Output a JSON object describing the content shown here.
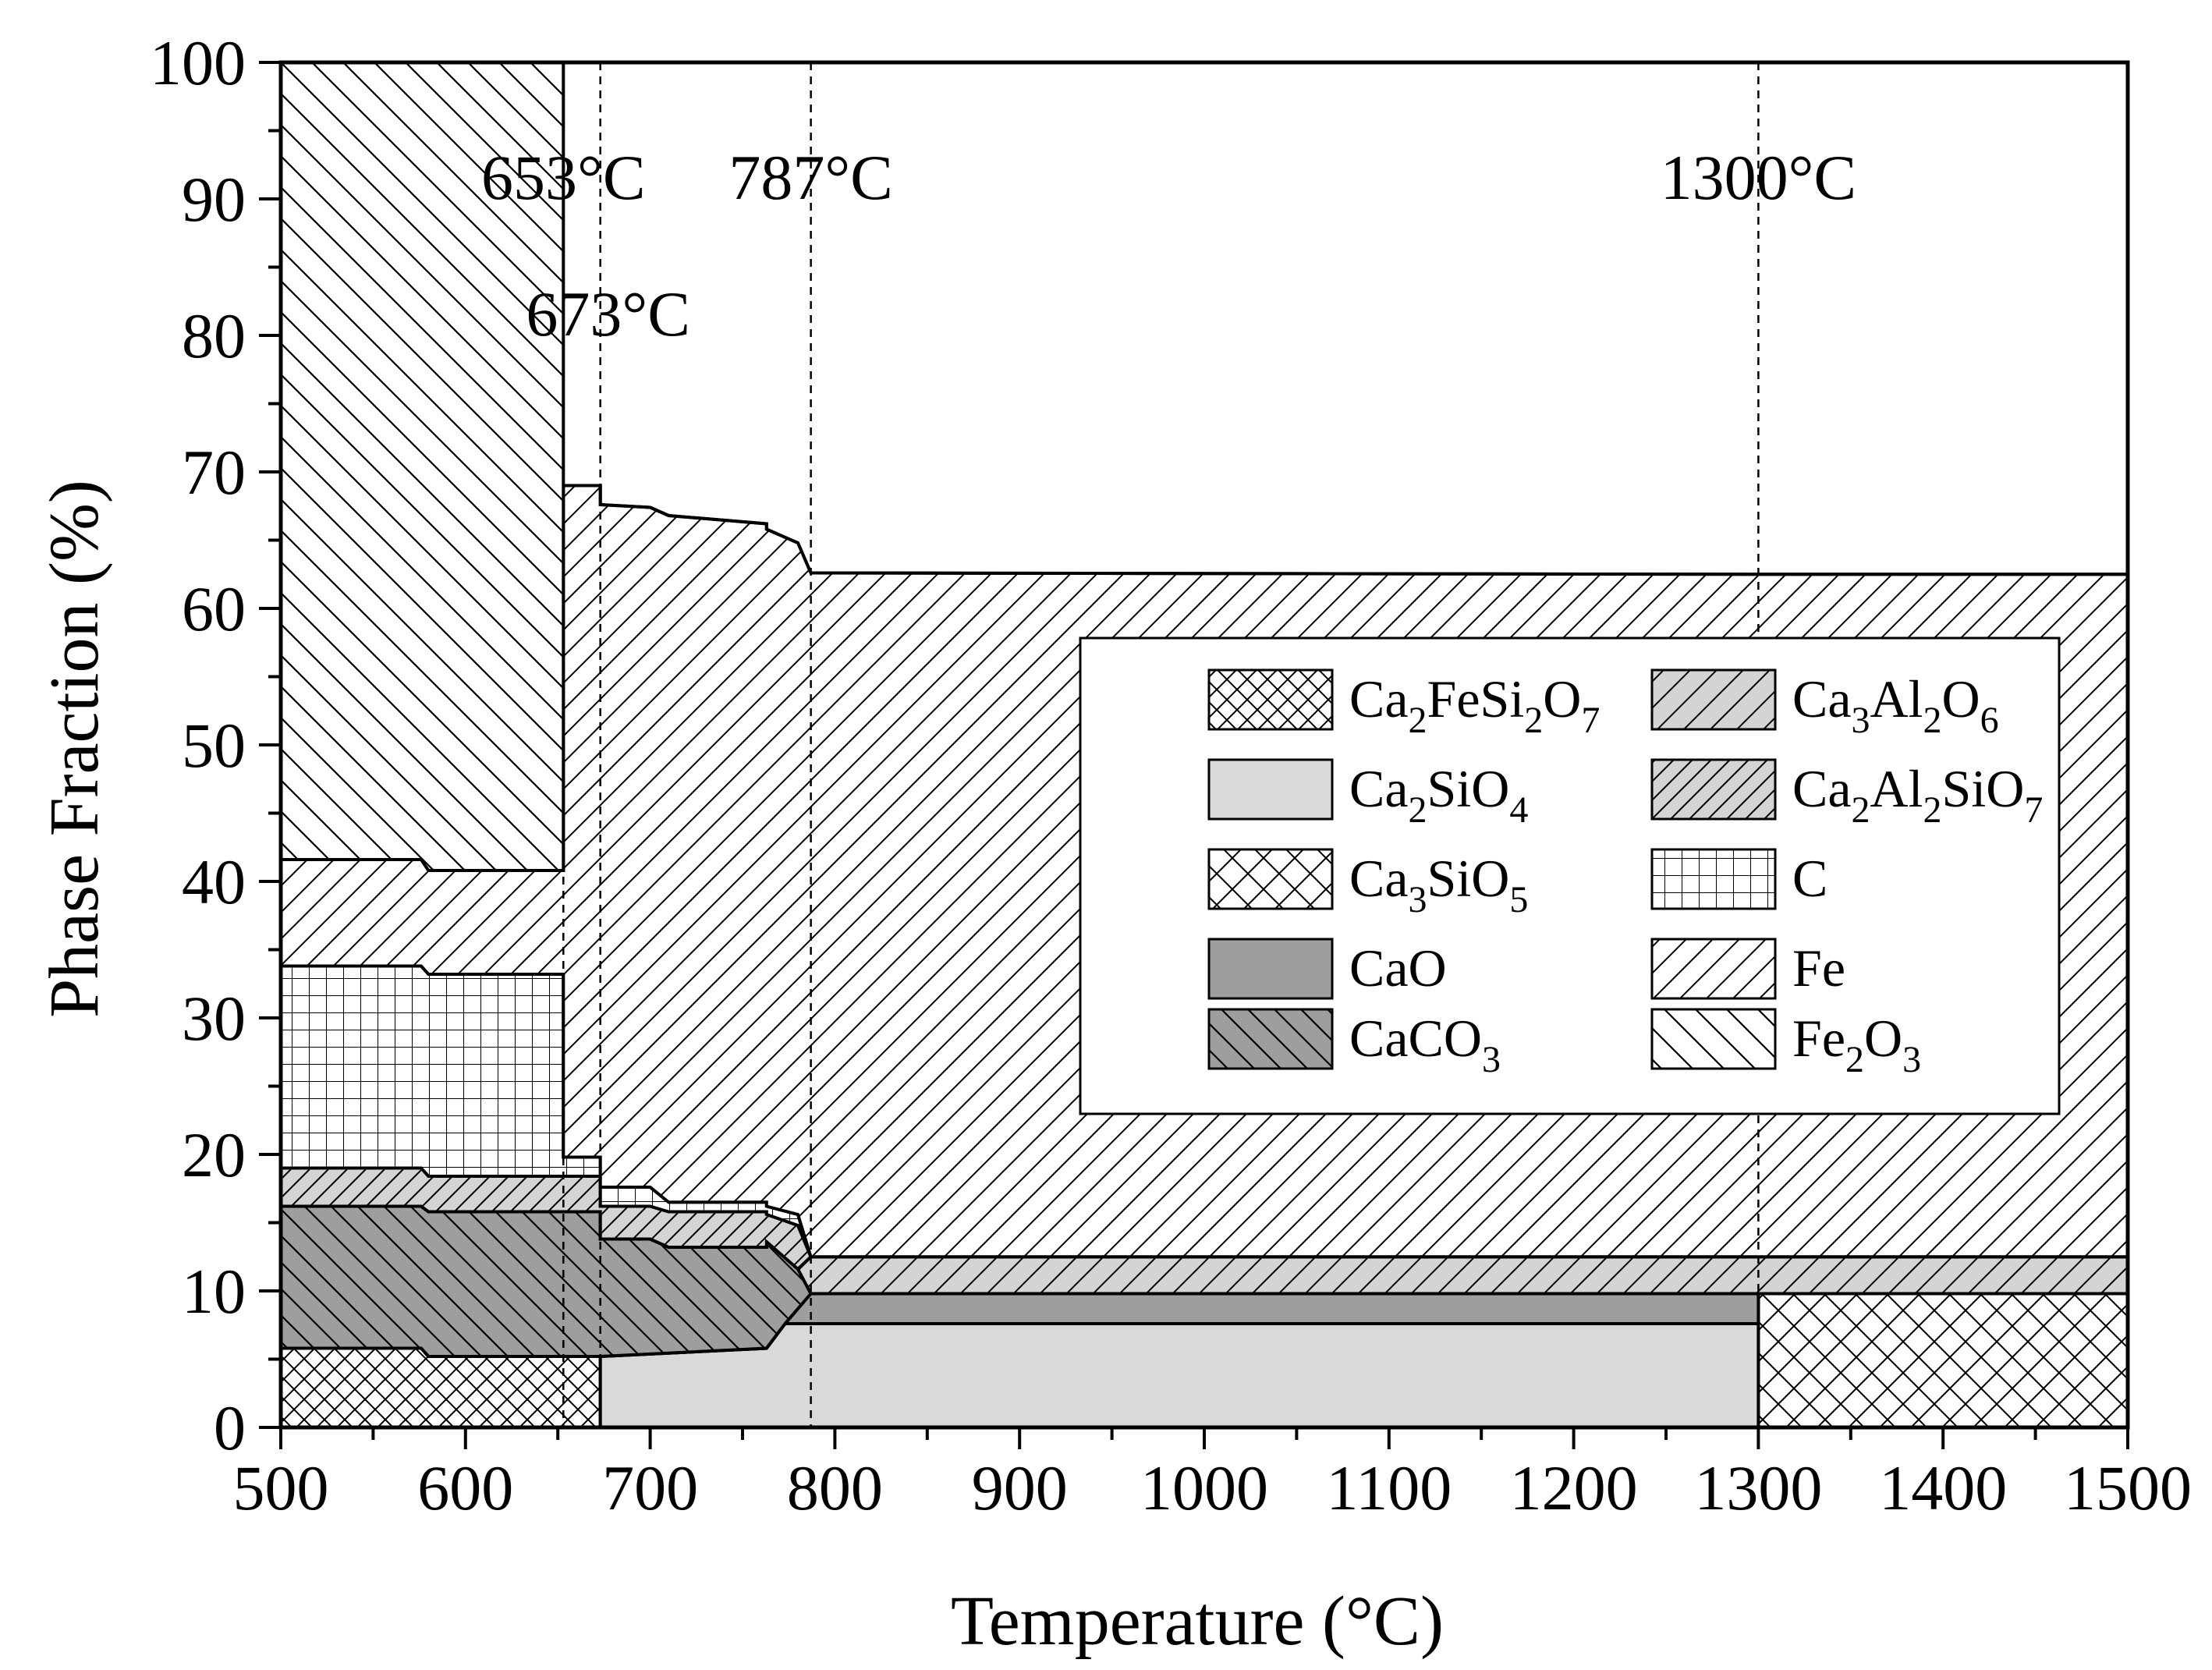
{
  "chart_data": {
    "type": "area",
    "xlabel": "Temperature (°C)",
    "ylabel": "Phase Fraction (%)",
    "xlim": [
      500,
      1500
    ],
    "ylim": [
      0,
      100
    ],
    "x_ticks": [
      "500",
      "600",
      "700",
      "800",
      "900",
      "1000",
      "1100",
      "1200",
      "1300",
      "1400",
      "1500"
    ],
    "y_ticks": [
      "0",
      "10",
      "20",
      "30",
      "40",
      "50",
      "60",
      "70",
      "80",
      "90",
      "100"
    ],
    "annotations": [
      {
        "text": "653°C",
        "x": 653
      },
      {
        "text": "673°C",
        "x": 673
      },
      {
        "text": "787°C",
        "x": 787
      },
      {
        "text": "1300°C",
        "x": 1300
      }
    ],
    "grid": false,
    "legend_position": "right-center",
    "series_order_bottom_to_top": [
      "Ca2FeSi2O7",
      "Ca3SiO5",
      "Ca2SiO4",
      "CaO",
      "CaCO3",
      "Ca3Al2O6",
      "Ca2Al2SiO7",
      "C",
      "Fe",
      "Fe2O3"
    ],
    "boundaries": {
      "Ca2FeSi2O7": [
        [
          500,
          5.8
        ],
        [
          576,
          5.8
        ],
        [
          580,
          5.2
        ],
        [
          673,
          5.2
        ],
        [
          673,
          0
        ],
        [
          1500,
          0
        ]
      ],
      "Ca3SiO5": [
        [
          500,
          5.8
        ],
        [
          576,
          5.8
        ],
        [
          580,
          5.2
        ],
        [
          673,
          5.2
        ],
        [
          673,
          0
        ],
        [
          1300,
          0
        ],
        [
          1300,
          9.8
        ],
        [
          1500,
          9.8
        ]
      ],
      "Ca2SiO4": [
        [
          500,
          5.8
        ],
        [
          576,
          5.8
        ],
        [
          580,
          5.2
        ],
        [
          673,
          5.2
        ],
        [
          673,
          5.2
        ],
        [
          763,
          5.8
        ],
        [
          773,
          7.6
        ],
        [
          787,
          7.6
        ],
        [
          1300,
          7.6
        ],
        [
          1300,
          9.8
        ],
        [
          1500,
          9.8
        ]
      ],
      "CaO": [
        [
          500,
          5.8
        ],
        [
          576,
          5.8
        ],
        [
          580,
          5.2
        ],
        [
          673,
          5.2
        ],
        [
          673,
          5.2
        ],
        [
          763,
          5.8
        ],
        [
          773,
          7.6
        ],
        [
          787,
          9.8
        ],
        [
          1300,
          9.8
        ],
        [
          1300,
          9.8
        ],
        [
          1500,
          9.8
        ]
      ],
      "CaCO3": [
        [
          500,
          16.2
        ],
        [
          576,
          16.2
        ],
        [
          580,
          15.8
        ],
        [
          653,
          15.8
        ],
        [
          673,
          15.8
        ],
        [
          673,
          13.8
        ],
        [
          700,
          13.8
        ],
        [
          710,
          13.2
        ],
        [
          763,
          13.2
        ],
        [
          763,
          13.6
        ],
        [
          780,
          11.6
        ],
        [
          787,
          9.8
        ],
        [
          1300,
          9.8
        ],
        [
          1300,
          9.8
        ],
        [
          1500,
          9.8
        ]
      ],
      "Ca3Al2O6": [
        [
          500,
          16.2
        ],
        [
          576,
          16.2
        ],
        [
          580,
          15.8
        ],
        [
          653,
          15.8
        ],
        [
          673,
          15.8
        ],
        [
          673,
          13.8
        ],
        [
          700,
          13.8
        ],
        [
          710,
          13.2
        ],
        [
          763,
          13.2
        ],
        [
          763,
          13.6
        ],
        [
          780,
          11.6
        ],
        [
          787,
          12.5
        ],
        [
          1300,
          12.5
        ],
        [
          1300,
          12.5
        ],
        [
          1500,
          12.5
        ]
      ],
      "Ca2Al2SiO7": [
        [
          500,
          19
        ],
        [
          576,
          19
        ],
        [
          580,
          18.4
        ],
        [
          653,
          18.4
        ],
        [
          673,
          18.4
        ],
        [
          673,
          16.2
        ],
        [
          700,
          16.2
        ],
        [
          710,
          15.8
        ],
        [
          763,
          15.8
        ],
        [
          763,
          15.6
        ],
        [
          780,
          14.8
        ],
        [
          787,
          12.5
        ],
        [
          1300,
          12.5
        ],
        [
          1300,
          12.5
        ],
        [
          1500,
          12.5
        ]
      ],
      "C": [
        [
          500,
          33.8
        ],
        [
          576,
          33.8
        ],
        [
          580,
          33.2
        ],
        [
          653,
          33.2
        ],
        [
          653,
          19.8
        ],
        [
          673,
          19.8
        ],
        [
          673,
          17.6
        ],
        [
          700,
          17.6
        ],
        [
          710,
          16.5
        ],
        [
          763,
          16.5
        ],
        [
          763,
          16.2
        ],
        [
          780,
          15.6
        ],
        [
          787,
          12.5
        ],
        [
          1300,
          12.5
        ],
        [
          1300,
          12.5
        ],
        [
          1500,
          12.5
        ]
      ],
      "Fe": [
        [
          500,
          41.6
        ],
        [
          576,
          41.6
        ],
        [
          580,
          40.8
        ],
        [
          653,
          40.8
        ],
        [
          653,
          69
        ],
        [
          673,
          69
        ],
        [
          673,
          67.6
        ],
        [
          700,
          67.4
        ],
        [
          710,
          66.8
        ],
        [
          763,
          66.2
        ],
        [
          763,
          65.8
        ],
        [
          780,
          64.8
        ],
        [
          787,
          62.6
        ],
        [
          1300,
          62.5
        ],
        [
          1300,
          62.5
        ],
        [
          1500,
          62.5
        ]
      ],
      "Fe2O3": [
        [
          500,
          100
        ],
        [
          576,
          100
        ],
        [
          580,
          100
        ],
        [
          653,
          100
        ],
        [
          653,
          69
        ],
        [
          673,
          69
        ],
        [
          673,
          67.6
        ],
        [
          700,
          67.4
        ],
        [
          710,
          66.8
        ],
        [
          763,
          66.2
        ],
        [
          763,
          65.8
        ],
        [
          780,
          64.8
        ],
        [
          787,
          62.6
        ],
        [
          1300,
          62.5
        ],
        [
          1300,
          62.5
        ],
        [
          1500,
          62.5
        ]
      ]
    },
    "legend": [
      {
        "key": "Ca2FeSi2O7",
        "pattern": "crosshatch",
        "label": [
          [
            "Ca",
            ""
          ],
          [
            "2",
            "sub"
          ],
          [
            "FeSi",
            ""
          ],
          [
            "2",
            "sub"
          ],
          [
            "O",
            ""
          ],
          [
            "7",
            "sub"
          ]
        ]
      },
      {
        "key": "Ca3Al2O6",
        "pattern": "gray-forward",
        "label": [
          [
            "Ca",
            ""
          ],
          [
            "3",
            "sub"
          ],
          [
            "Al",
            ""
          ],
          [
            "2",
            "sub"
          ],
          [
            "O",
            ""
          ],
          [
            "6",
            "sub"
          ]
        ]
      },
      {
        "key": "Ca2SiO4",
        "pattern": "light-gray",
        "label": [
          [
            "Ca",
            ""
          ],
          [
            "2",
            "sub"
          ],
          [
            "SiO",
            ""
          ],
          [
            "4",
            "sub"
          ]
        ]
      },
      {
        "key": "Ca2Al2SiO7",
        "pattern": "gray-forward-dense",
        "label": [
          [
            "Ca",
            ""
          ],
          [
            "2",
            "sub"
          ],
          [
            "Al",
            ""
          ],
          [
            "2",
            "sub"
          ],
          [
            "SiO",
            ""
          ],
          [
            "7",
            "sub"
          ]
        ]
      },
      {
        "key": "Ca3SiO5",
        "pattern": "crosshatch-wide",
        "label": [
          [
            "Ca",
            ""
          ],
          [
            "3",
            "sub"
          ],
          [
            "SiO",
            ""
          ],
          [
            "5",
            "sub"
          ]
        ]
      },
      {
        "key": "C",
        "pattern": "grid",
        "label": [
          [
            "C",
            ""
          ]
        ]
      },
      {
        "key": "CaO",
        "pattern": "gray",
        "label": [
          [
            "CaO",
            ""
          ]
        ]
      },
      {
        "key": "Fe",
        "pattern": "forward",
        "label": [
          [
            "Fe",
            ""
          ]
        ]
      },
      {
        "key": "CaCO3",
        "pattern": "gray-back",
        "label": [
          [
            "CaCO",
            ""
          ],
          [
            "3",
            "sub"
          ]
        ]
      },
      {
        "key": "Fe2O3",
        "pattern": "back",
        "label": [
          [
            "Fe",
            ""
          ],
          [
            "2",
            "sub"
          ],
          [
            "O",
            ""
          ],
          [
            "3",
            "sub"
          ]
        ]
      }
    ]
  }
}
